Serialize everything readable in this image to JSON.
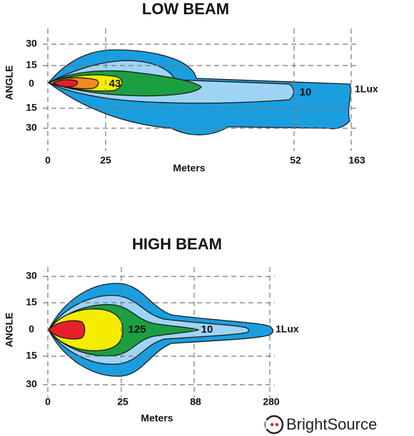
{
  "low_beam": {
    "title": "LOW BEAM",
    "y_axis_label": "ANGLE",
    "x_axis_label": "Meters",
    "y_ticks": [
      "30",
      "15",
      "0",
      "15",
      "30"
    ],
    "x_ticks": [
      "0",
      "25",
      "52",
      "163"
    ],
    "contour_labels": [
      "43",
      "10",
      "1Lux"
    ]
  },
  "high_beam": {
    "title": "HIGH BEAM",
    "y_axis_label": "ANGLE",
    "x_axis_label": "Meters",
    "y_ticks": [
      "30",
      "15",
      "0",
      "15",
      "30"
    ],
    "x_ticks": [
      "0",
      "25",
      "88",
      "280"
    ],
    "contour_labels": [
      "125",
      "10",
      "1Lux"
    ]
  },
  "logo": "BrightSource"
}
